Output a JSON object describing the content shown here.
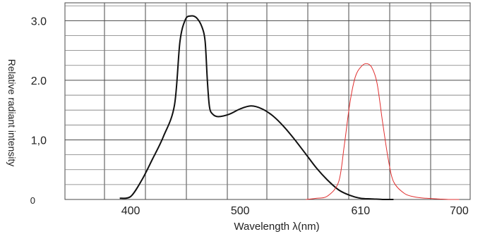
{
  "chart_data": {
    "type": "line",
    "xlabel": "Wavelength λ(nm)",
    "ylabel": "Relative radiant intensity",
    "x_ticks": [
      {
        "value": 400,
        "label": "400"
      },
      {
        "value": 500,
        "label": "500"
      },
      {
        "value": 610,
        "label": "610"
      },
      {
        "value": 700,
        "label": "700"
      }
    ],
    "y_ticks": [
      {
        "value": 0,
        "label": "0"
      },
      {
        "value": 1.0,
        "label": "1,0"
      },
      {
        "value": 2.0,
        "label": "2.0"
      },
      {
        "value": 3.0,
        "label": "3.0"
      }
    ],
    "xlim": [
      340,
      710
    ],
    "ylim": [
      0,
      3.3
    ],
    "grid": true,
    "series": [
      {
        "color": "#111111",
        "x": [
          390,
          400,
          410,
          420,
          430,
          440,
          445,
          450,
          455,
          460,
          465,
          468,
          470,
          472,
          475,
          480,
          490,
          500,
          510,
          520,
          530,
          540,
          550,
          560,
          570,
          580,
          590,
          600,
          610,
          620,
          630,
          640
        ],
        "y": [
          0.02,
          0.05,
          0.32,
          0.68,
          1.06,
          1.58,
          2.65,
          3.02,
          3.08,
          3.05,
          2.9,
          2.65,
          2.0,
          1.55,
          1.43,
          1.39,
          1.43,
          1.52,
          1.57,
          1.52,
          1.4,
          1.22,
          1.0,
          0.76,
          0.52,
          0.32,
          0.16,
          0.07,
          0.02,
          0.01,
          0.0,
          0.0
        ]
      },
      {
        "color": "#e03030",
        "x": [
          560,
          570,
          580,
          590,
          595,
          600,
          605,
          610,
          615,
          620,
          625,
          630,
          635,
          640,
          650,
          660,
          670,
          680,
          690,
          700
        ],
        "y": [
          0.0,
          0.02,
          0.06,
          0.3,
          0.9,
          1.6,
          2.05,
          2.22,
          2.28,
          2.22,
          1.95,
          1.3,
          0.7,
          0.3,
          0.1,
          0.04,
          0.02,
          0.01,
          0.0,
          0.0
        ]
      }
    ]
  }
}
